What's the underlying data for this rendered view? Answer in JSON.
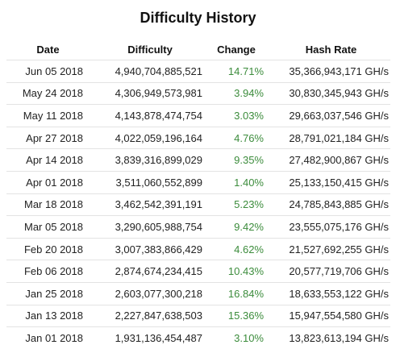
{
  "title": "Difficulty History",
  "columns": {
    "date": "Date",
    "difficulty": "Difficulty",
    "change": "Change",
    "hash_rate": "Hash Rate"
  },
  "colors": {
    "change_text": "#3c8c3c",
    "row_divider": "#e3e3e3"
  },
  "rows": [
    {
      "date": "Jun 05 2018",
      "difficulty": "4,940,704,885,521",
      "change": "14.71%",
      "hash_rate": "35,366,943,171 GH/s"
    },
    {
      "date": "May 24 2018",
      "difficulty": "4,306,949,573,981",
      "change": "3.94%",
      "hash_rate": "30,830,345,943 GH/s"
    },
    {
      "date": "May 11 2018",
      "difficulty": "4,143,878,474,754",
      "change": "3.03%",
      "hash_rate": "29,663,037,546 GH/s"
    },
    {
      "date": "Apr 27 2018",
      "difficulty": "4,022,059,196,164",
      "change": "4.76%",
      "hash_rate": "28,791,021,184 GH/s"
    },
    {
      "date": "Apr 14 2018",
      "difficulty": "3,839,316,899,029",
      "change": "9.35%",
      "hash_rate": "27,482,900,867 GH/s"
    },
    {
      "date": "Apr 01 2018",
      "difficulty": "3,511,060,552,899",
      "change": "1.40%",
      "hash_rate": "25,133,150,415 GH/s"
    },
    {
      "date": "Mar 18 2018",
      "difficulty": "3,462,542,391,191",
      "change": "5.23%",
      "hash_rate": "24,785,843,885 GH/s"
    },
    {
      "date": "Mar 05 2018",
      "difficulty": "3,290,605,988,754",
      "change": "9.42%",
      "hash_rate": "23,555,075,176 GH/s"
    },
    {
      "date": "Feb 20 2018",
      "difficulty": "3,007,383,866,429",
      "change": "4.62%",
      "hash_rate": "21,527,692,255 GH/s"
    },
    {
      "date": "Feb 06 2018",
      "difficulty": "2,874,674,234,415",
      "change": "10.43%",
      "hash_rate": "20,577,719,706 GH/s"
    },
    {
      "date": "Jan 25 2018",
      "difficulty": "2,603,077,300,218",
      "change": "16.84%",
      "hash_rate": "18,633,553,122 GH/s"
    },
    {
      "date": "Jan 13 2018",
      "difficulty": "2,227,847,638,503",
      "change": "15.36%",
      "hash_rate": "15,947,554,580 GH/s"
    },
    {
      "date": "Jan 01 2018",
      "difficulty": "1,931,136,454,487",
      "change": "3.10%",
      "hash_rate": "13,823,613,194 GH/s"
    }
  ]
}
